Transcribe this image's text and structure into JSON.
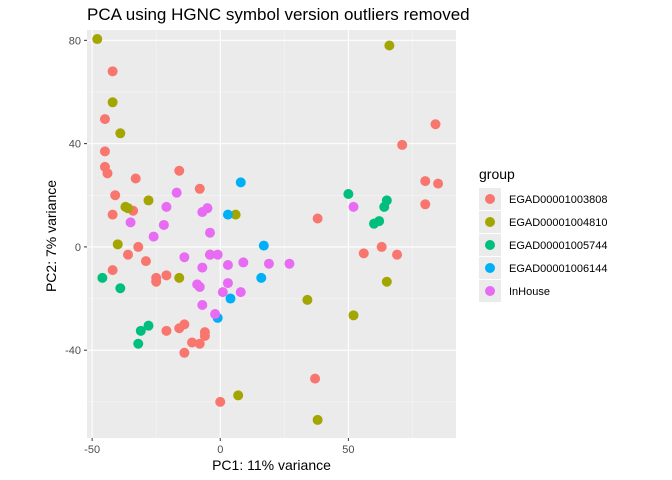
{
  "chart_data": {
    "type": "scatter",
    "title": "PCA using HGNC symbol version outliers removed",
    "xlabel": "PC1: 11% variance",
    "ylabel": "PC2: 7% variance",
    "xlim": [
      -52,
      92
    ],
    "ylim": [
      -74,
      84
    ],
    "x_ticks": [
      -50,
      0,
      50
    ],
    "y_ticks": [
      -40,
      0,
      40,
      80
    ],
    "x_tick_labels": [
      "-50",
      "0",
      "50"
    ],
    "y_tick_labels": [
      "-40",
      "0",
      "40",
      "80"
    ],
    "grid": true,
    "legend_position": "right",
    "legend_title": "group",
    "series": [
      {
        "name": "EGAD00001003808",
        "color": "#F8766D",
        "points": [
          [
            -42,
            68
          ],
          [
            -45,
            49.5
          ],
          [
            -45,
            37
          ],
          [
            -45,
            31
          ],
          [
            -44,
            28.5
          ],
          [
            -41,
            20
          ],
          [
            -42,
            12.5
          ],
          [
            -34,
            14
          ],
          [
            -33,
            26.5
          ],
          [
            -36,
            -3
          ],
          [
            -32,
            0
          ],
          [
            -29,
            -5.5
          ],
          [
            -25,
            -12
          ],
          [
            -25,
            -13.5
          ],
          [
            -21,
            -11
          ],
          [
            -42,
            -9
          ],
          [
            -16,
            29.5
          ],
          [
            -8,
            22.5
          ],
          [
            -16,
            -31.5
          ],
          [
            -14,
            -30
          ],
          [
            -21,
            -32.5
          ],
          [
            -11,
            -37
          ],
          [
            -8,
            -37.5
          ],
          [
            -14,
            -41
          ],
          [
            -6,
            -34.5
          ],
          [
            -6,
            -33
          ],
          [
            0,
            -60
          ],
          [
            38,
            11
          ],
          [
            37,
            -51
          ],
          [
            56,
            -2.5
          ],
          [
            63,
            0
          ],
          [
            69,
            -3
          ],
          [
            71,
            39.5
          ],
          [
            80,
            25.5
          ],
          [
            80,
            16.5
          ],
          [
            84,
            47.5
          ],
          [
            85,
            24.5
          ]
        ]
      },
      {
        "name": "EGAD00001004810",
        "color": "#A3A500",
        "points": [
          [
            -48,
            80.5
          ],
          [
            -42,
            56
          ],
          [
            -39,
            44
          ],
          [
            -37,
            15.5
          ],
          [
            -36,
            15
          ],
          [
            -40,
            1
          ],
          [
            -28,
            18
          ],
          [
            -16,
            -12
          ],
          [
            -4,
            -3
          ],
          [
            6,
            12.5
          ],
          [
            7,
            -57.5
          ],
          [
            34,
            -20.5
          ],
          [
            38,
            -67
          ],
          [
            52,
            -26.5
          ],
          [
            65,
            -13.5
          ],
          [
            66,
            78
          ]
        ]
      },
      {
        "name": "EGAD00001005744",
        "color": "#00BF7D",
        "points": [
          [
            -46,
            -12
          ],
          [
            -39,
            -16
          ],
          [
            -31,
            -32.5
          ],
          [
            -28,
            -30.5
          ],
          [
            -32,
            -37.5
          ],
          [
            50,
            20.5
          ],
          [
            60,
            9
          ],
          [
            62,
            10
          ],
          [
            64,
            15.5
          ],
          [
            65,
            18
          ]
        ]
      },
      {
        "name": "EGAD00001006144",
        "color": "#00B0F6",
        "points": [
          [
            8,
            25
          ],
          [
            3,
            12.5
          ],
          [
            17,
            0.5
          ],
          [
            16,
            -12
          ],
          [
            4,
            -20
          ],
          [
            -1,
            -27.5
          ]
        ]
      },
      {
        "name": "InHouse",
        "color": "#E76BF3",
        "points": [
          [
            -35,
            9.5
          ],
          [
            -17,
            21
          ],
          [
            -21,
            15.5
          ],
          [
            -22,
            8.5
          ],
          [
            -26,
            4
          ],
          [
            -7,
            13.5
          ],
          [
            -5,
            15
          ],
          [
            -4,
            5.5
          ],
          [
            -14,
            -4
          ],
          [
            -7,
            -8
          ],
          [
            -4,
            -3
          ],
          [
            -1,
            -3
          ],
          [
            3,
            -7
          ],
          [
            9,
            -6
          ],
          [
            19,
            -6.5
          ],
          [
            27,
            -6.5
          ],
          [
            52,
            15.5
          ],
          [
            -9,
            -14.5
          ],
          [
            -8,
            -15.5
          ],
          [
            -7,
            -22.5
          ],
          [
            1,
            -17.5
          ],
          [
            3,
            -14
          ],
          [
            8,
            -17.5
          ],
          [
            -2,
            -26
          ]
        ]
      }
    ]
  },
  "colors": {
    "panel_background": "#EBEBEB",
    "grid_major": "#FFFFFF",
    "grid_minor": "#F5F5F5"
  }
}
